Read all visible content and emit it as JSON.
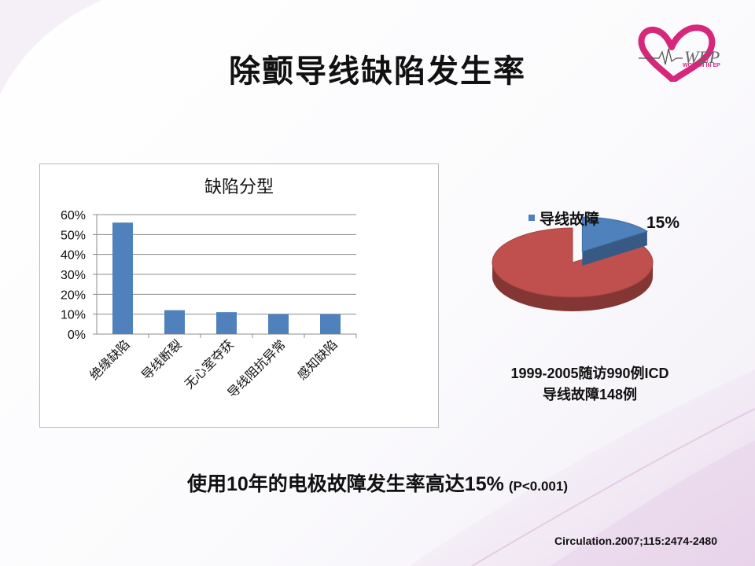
{
  "slide": {
    "title": "除颤导线缺陷发生率",
    "headline": "使用10年的电极故障发生率高达15%",
    "headline_p": "(P<0.001)",
    "citation": "Circulation.2007;115:2474-2480",
    "logo_text": "WOMEN IN EP",
    "accent_color": "#d6277a"
  },
  "chart_data": [
    {
      "type": "bar",
      "title": "缺陷分型",
      "categories": [
        "绝缘缺陷",
        "导线断裂",
        "无心室夺获",
        "导线阻抗异常",
        "感知缺陷"
      ],
      "values": [
        0.56,
        0.12,
        0.11,
        0.1,
        0.1
      ],
      "ylim": [
        0,
        0.6
      ],
      "yticks": [
        "0%",
        "10%",
        "20%",
        "30%",
        "40%",
        "50%",
        "60%"
      ],
      "grid": true,
      "color": "#4f81bd"
    },
    {
      "type": "pie",
      "legend": "导线故障",
      "slices": [
        {
          "name": "导线故障",
          "value": 15,
          "label": "15%",
          "color": "#4f81bd"
        },
        {
          "name": "",
          "value": 85,
          "color": "#c0504d"
        }
      ],
      "caption_line1": "1999-2005随访990例ICD",
      "caption_line2": "导线故障148例"
    }
  ]
}
